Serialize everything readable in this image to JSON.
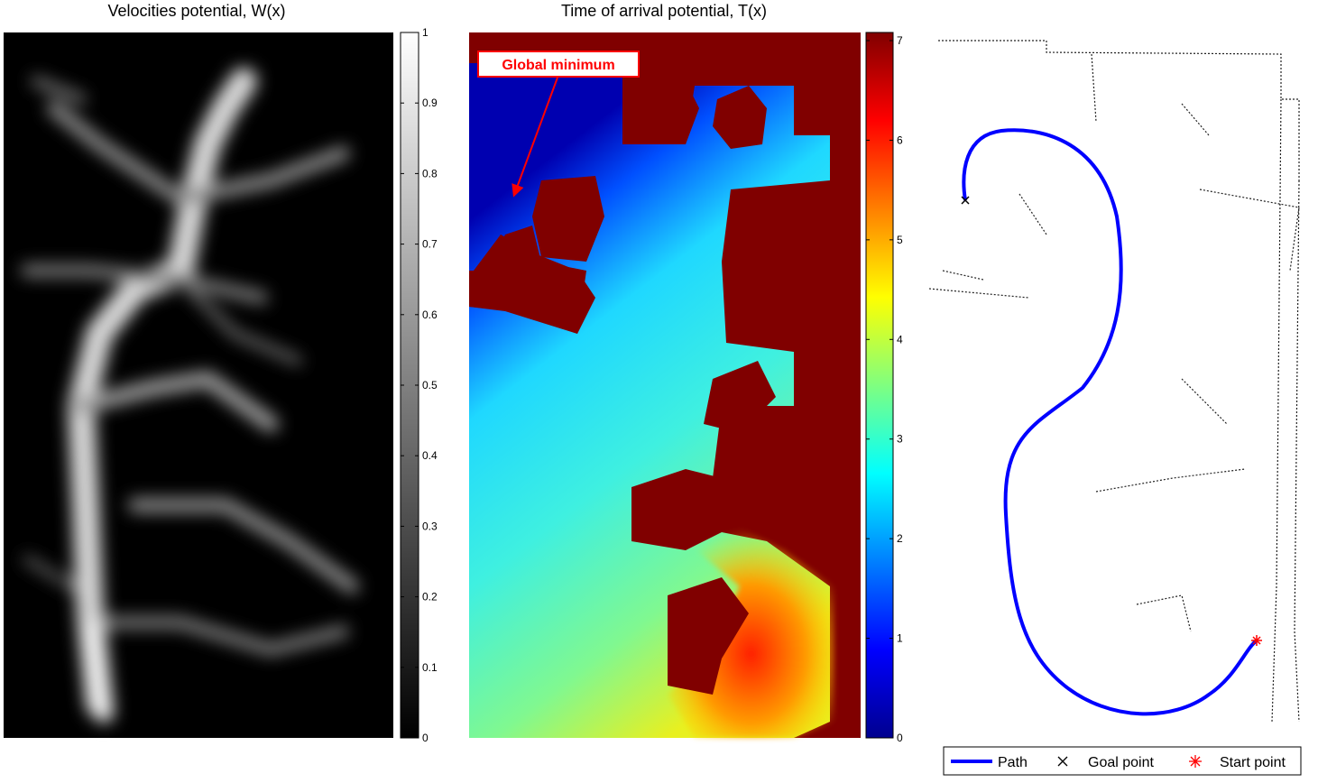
{
  "figure": {
    "panels": [
      {
        "title": "Velocities potential, W(x)"
      },
      {
        "title": "Time of arrival potential, T(x)",
        "annotation": "Global minimum"
      },
      {
        "title": ""
      }
    ],
    "legend": {
      "placement": "bottom",
      "items": [
        {
          "label": "Path",
          "marker": "line",
          "color": "#0000ff"
        },
        {
          "label": "Goal point",
          "marker": "x",
          "color": "#000000"
        },
        {
          "label": "Start point",
          "marker": "*",
          "color": "#ff0000"
        }
      ]
    }
  },
  "chart_data": [
    {
      "type": "heatmap",
      "title": "Velocities potential, W(x)",
      "colormap": "gray",
      "colorbar": {
        "min": 0,
        "max": 1,
        "ticks": [
          "0",
          "0.1",
          "0.2",
          "0.3",
          "0.4",
          "0.5",
          "0.6",
          "0.7",
          "0.8",
          "0.9",
          "1"
        ]
      },
      "axes": "off"
    },
    {
      "type": "heatmap",
      "title": "Time of arrival potential, T(x)",
      "colormap": "jet",
      "colorbar": {
        "min": 0,
        "max": 7,
        "ticks": [
          "0",
          "1",
          "2",
          "3",
          "4",
          "5",
          "6",
          "7"
        ]
      },
      "annotation": {
        "text": "Global minimum",
        "color": "#ff0000"
      },
      "axes": "off"
    },
    {
      "type": "line",
      "title": "",
      "axes": "off",
      "series": [
        {
          "name": "Path",
          "color": "#0000ff"
        },
        {
          "name": "Goal point",
          "marker": "x",
          "color": "#000000"
        },
        {
          "name": "Start point",
          "marker": "*",
          "color": "#ff0000"
        }
      ]
    }
  ]
}
